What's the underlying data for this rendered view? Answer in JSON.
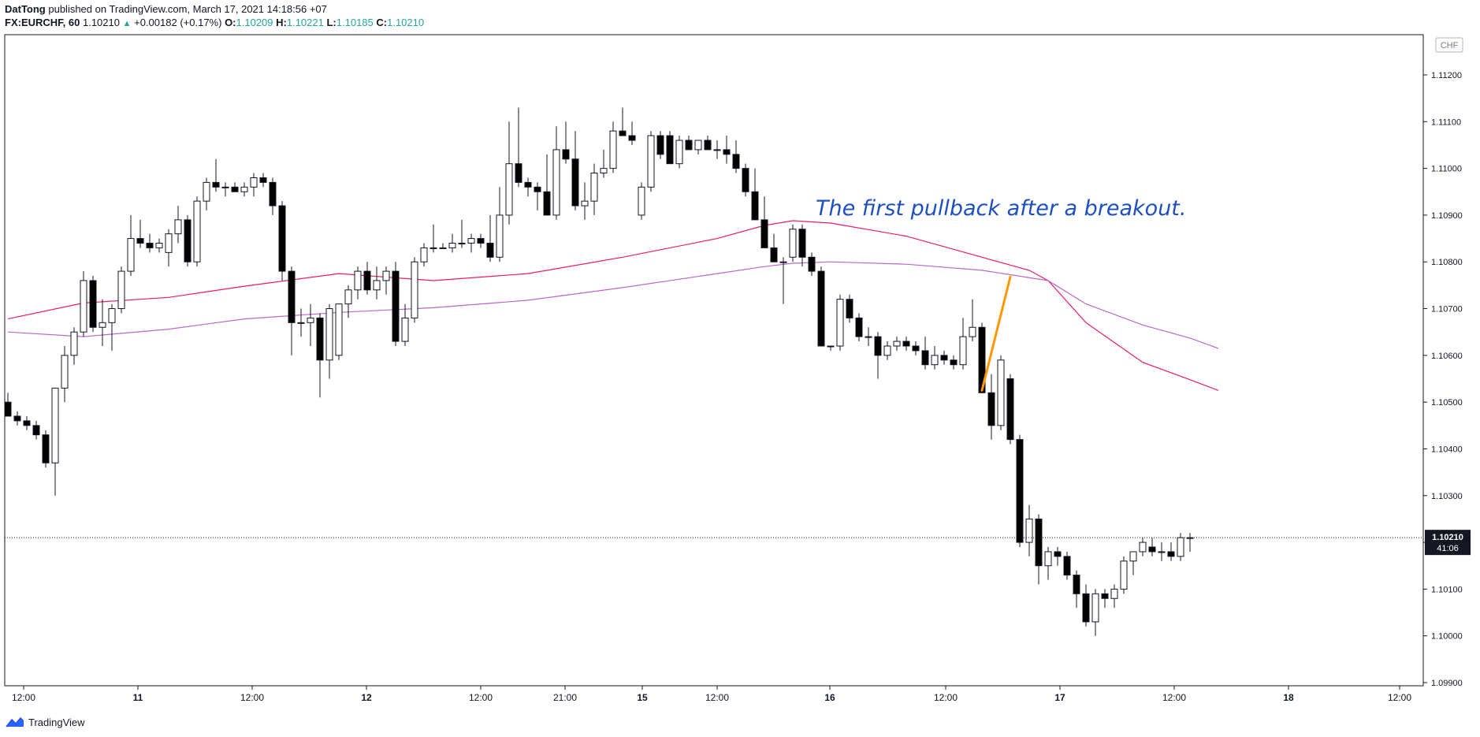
{
  "header": {
    "author": "DatTong",
    "published_text": " published on TradingView.com, March 17, 2021 14:18:56 +07",
    "symbol": "FX:EURCHF, 60",
    "last": "1.10210",
    "change": "+0.00182 (+0.17%)",
    "o_label": "O:",
    "o_value": "1.10209",
    "h_label": "H:",
    "h_value": "1.10221",
    "l_label": "L:",
    "l_value": "1.10185",
    "c_label": "C:",
    "c_value": "1.10210"
  },
  "footer": {
    "brand": "TradingView",
    "logo_icon": "tradingview-logo-icon"
  },
  "chart_data": {
    "type": "candlestick",
    "currency_label": "CHF",
    "annotation": "The first pullback after a breakout.",
    "last_price_label": "1.10210",
    "countdown_label": "41:06",
    "y_ticks": [
      "1.11200",
      "1.11100",
      "1.11000",
      "1.10900",
      "1.10800",
      "1.10700",
      "1.10600",
      "1.10500",
      "1.10400",
      "1.10300",
      "1.10200",
      "1.10100",
      "1.10000",
      "1.09900"
    ],
    "x_ticks": [
      "12:00",
      "11",
      "12:00",
      "12",
      "12:00",
      "21:00",
      "15",
      "12:00",
      "16",
      "12:00",
      "17",
      "12:00",
      "18",
      "12:00"
    ],
    "x_ticks_bold": [
      false,
      true,
      false,
      true,
      false,
      false,
      true,
      false,
      true,
      false,
      true,
      false,
      true,
      false
    ],
    "ylim": [
      1.0989,
      1.1134
    ],
    "candles": [
      [
        1.105,
        1.1052,
        1.1047,
        1.1047
      ],
      [
        1.1047,
        1.1048,
        1.1045,
        1.1046
      ],
      [
        1.1046,
        1.1047,
        1.1044,
        1.1045
      ],
      [
        1.1045,
        1.1046,
        1.1042,
        1.1043
      ],
      [
        1.1043,
        1.1044,
        1.1036,
        1.1037
      ],
      [
        1.1037,
        1.1053,
        1.103,
        1.1053
      ],
      [
        1.1053,
        1.1062,
        1.105,
        1.106
      ],
      [
        1.106,
        1.1066,
        1.1058,
        1.1065
      ],
      [
        1.1065,
        1.1078,
        1.1064,
        1.1076
      ],
      [
        1.1076,
        1.1077,
        1.1065,
        1.1066
      ],
      [
        1.1066,
        1.1072,
        1.1062,
        1.1067
      ],
      [
        1.1067,
        1.1071,
        1.1061,
        1.107
      ],
      [
        1.107,
        1.1079,
        1.1069,
        1.1078
      ],
      [
        1.1078,
        1.109,
        1.1077,
        1.1085
      ],
      [
        1.1085,
        1.1089,
        1.1083,
        1.1084
      ],
      [
        1.1084,
        1.1086,
        1.1082,
        1.1083
      ],
      [
        1.1083,
        1.1085,
        1.1082,
        1.1084
      ],
      [
        1.1082,
        1.1087,
        1.1079,
        1.1086
      ],
      [
        1.1086,
        1.1092,
        1.1084,
        1.1089
      ],
      [
        1.1089,
        1.109,
        1.1079,
        1.108
      ],
      [
        1.108,
        1.1094,
        1.1079,
        1.1093
      ],
      [
        1.1093,
        1.1098,
        1.1091,
        1.1097
      ],
      [
        1.1097,
        1.1102,
        1.1095,
        1.1096
      ],
      [
        1.1096,
        1.1097,
        1.1094,
        1.1096
      ],
      [
        1.1096,
        1.1097,
        1.1095,
        1.1095
      ],
      [
        1.1095,
        1.1097,
        1.1094,
        1.1096
      ],
      [
        1.1096,
        1.1099,
        1.1094,
        1.1098
      ],
      [
        1.1098,
        1.1099,
        1.1096,
        1.1097
      ],
      [
        1.1097,
        1.1098,
        1.109,
        1.1092
      ],
      [
        1.1092,
        1.1093,
        1.1076,
        1.1078
      ],
      [
        1.1078,
        1.1079,
        1.106,
        1.1067
      ],
      [
        1.1067,
        1.107,
        1.1064,
        1.1067
      ],
      [
        1.1067,
        1.1071,
        1.1062,
        1.1068
      ],
      [
        1.1068,
        1.1069,
        1.1051,
        1.1059
      ],
      [
        1.1059,
        1.1071,
        1.1055,
        1.107
      ],
      [
        1.106,
        1.1071,
        1.1059,
        1.1071
      ],
      [
        1.1071,
        1.1075,
        1.1068,
        1.1074
      ],
      [
        1.1074,
        1.1079,
        1.1072,
        1.1078
      ],
      [
        1.1078,
        1.108,
        1.1073,
        1.1074
      ],
      [
        1.1074,
        1.1079,
        1.1072,
        1.1076
      ],
      [
        1.1076,
        1.1079,
        1.1073,
        1.1078
      ],
      [
        1.1078,
        1.108,
        1.1062,
        1.1063
      ],
      [
        1.1063,
        1.1071,
        1.1062,
        1.1068
      ],
      [
        1.1068,
        1.1081,
        1.1067,
        1.108
      ],
      [
        1.108,
        1.1084,
        1.1079,
        1.1083
      ],
      [
        1.1083,
        1.1088,
        1.1082,
        1.1083
      ],
      [
        1.1083,
        1.1084,
        1.1083,
        1.1083
      ],
      [
        1.1083,
        1.1086,
        1.1082,
        1.1084
      ],
      [
        1.1084,
        1.1089,
        1.1083,
        1.1084
      ],
      [
        1.1084,
        1.1086,
        1.1082,
        1.1085
      ],
      [
        1.1085,
        1.1086,
        1.1083,
        1.1084
      ],
      [
        1.1084,
        1.109,
        1.108,
        1.1081
      ],
      [
        1.1081,
        1.1096,
        1.108,
        1.109
      ],
      [
        1.109,
        1.111,
        1.1088,
        1.1101
      ],
      [
        1.1101,
        1.1113,
        1.1096,
        1.1097
      ],
      [
        1.1097,
        1.1098,
        1.1094,
        1.1096
      ],
      [
        1.1096,
        1.1097,
        1.1091,
        1.1095
      ],
      [
        1.1095,
        1.1103,
        1.1091,
        1.109
      ],
      [
        1.109,
        1.1109,
        1.1089,
        1.1104
      ],
      [
        1.1104,
        1.111,
        1.1101,
        1.1102
      ],
      [
        1.1102,
        1.1108,
        1.1091,
        1.1092
      ],
      [
        1.1092,
        1.1097,
        1.1089,
        1.1093
      ],
      [
        1.1093,
        1.1101,
        1.109,
        1.1099
      ],
      [
        1.1099,
        1.1104,
        1.1098,
        1.11
      ],
      [
        1.11,
        1.111,
        1.1099,
        1.1108
      ],
      [
        1.1108,
        1.1113,
        1.1107,
        1.1107
      ],
      [
        1.1107,
        1.111,
        1.1105,
        1.1106
      ],
      [
        1.109,
        1.1097,
        1.1089,
        1.1096
      ],
      [
        1.1096,
        1.1108,
        1.1095,
        1.1107
      ],
      [
        1.1107,
        1.1108,
        1.1102,
        1.1103
      ],
      [
        1.1107,
        1.1108,
        1.1101,
        1.1101
      ],
      [
        1.1101,
        1.1107,
        1.11,
        1.1106
      ],
      [
        1.1106,
        1.1107,
        1.1104,
        1.1104
      ],
      [
        1.1104,
        1.1106,
        1.1103,
        1.1106
      ],
      [
        1.1106,
        1.1107,
        1.1104,
        1.1104
      ],
      [
        1.1104,
        1.1106,
        1.1102,
        1.1104
      ],
      [
        1.1104,
        1.1107,
        1.1101,
        1.1103
      ],
      [
        1.1103,
        1.1106,
        1.1099,
        1.11
      ],
      [
        1.11,
        1.1101,
        1.1094,
        1.1095
      ],
      [
        1.1095,
        1.11,
        1.109,
        1.1089
      ],
      [
        1.1089,
        1.1094,
        1.1084,
        1.1083
      ],
      [
        1.1083,
        1.1086,
        1.108,
        1.108
      ],
      [
        1.108,
        1.1081,
        1.1071,
        1.108
      ],
      [
        1.1081,
        1.1088,
        1.108,
        1.1087
      ],
      [
        1.1087,
        1.1088,
        1.1079,
        1.1081
      ],
      [
        1.1081,
        1.1082,
        1.1077,
        1.1078
      ],
      [
        1.1078,
        1.1079,
        1.1062,
        1.1062
      ],
      [
        1.1062,
        1.1062,
        1.1061,
        1.1062
      ],
      [
        1.1062,
        1.1073,
        1.1061,
        1.1072
      ],
      [
        1.1072,
        1.1073,
        1.1067,
        1.1068
      ],
      [
        1.1068,
        1.1069,
        1.1063,
        1.1064
      ],
      [
        1.1064,
        1.1066,
        1.1062,
        1.1064
      ],
      [
        1.1064,
        1.1065,
        1.1055,
        1.106
      ],
      [
        1.106,
        1.1063,
        1.1059,
        1.1062
      ],
      [
        1.1062,
        1.1064,
        1.1061,
        1.1063
      ],
      [
        1.1063,
        1.1064,
        1.1061,
        1.1062
      ],
      [
        1.1062,
        1.1063,
        1.106,
        1.1061
      ],
      [
        1.1061,
        1.1064,
        1.1057,
        1.1058
      ],
      [
        1.1058,
        1.1062,
        1.1057,
        1.106
      ],
      [
        1.106,
        1.1061,
        1.1058,
        1.1059
      ],
      [
        1.1059,
        1.106,
        1.1057,
        1.1058
      ],
      [
        1.1058,
        1.1068,
        1.1057,
        1.1064
      ],
      [
        1.1064,
        1.1072,
        1.1063,
        1.1066
      ],
      [
        1.1066,
        1.1067,
        1.1052,
        1.1052
      ],
      [
        1.1052,
        1.1056,
        1.1042,
        1.1045
      ],
      [
        1.1045,
        1.106,
        1.1044,
        1.1059
      ],
      [
        1.1055,
        1.1056,
        1.1041,
        1.1042
      ],
      [
        1.1042,
        1.1043,
        1.1019,
        1.102
      ],
      [
        1.102,
        1.1028,
        1.1017,
        1.1025
      ],
      [
        1.1025,
        1.1026,
        1.1011,
        1.1015
      ],
      [
        1.1015,
        1.1019,
        1.1012,
        1.1018
      ],
      [
        1.1018,
        1.1019,
        1.1015,
        1.1017
      ],
      [
        1.1017,
        1.1018,
        1.1012,
        1.1013
      ],
      [
        1.1013,
        1.1014,
        1.1006,
        1.1009
      ],
      [
        1.1009,
        1.1011,
        1.1002,
        1.1003
      ],
      [
        1.1003,
        1.101,
        1.1,
        1.1009
      ],
      [
        1.1009,
        1.101,
        1.1006,
        1.1008
      ],
      [
        1.1008,
        1.1011,
        1.1006,
        1.101
      ],
      [
        1.101,
        1.1017,
        1.1009,
        1.1016
      ],
      [
        1.1016,
        1.1018,
        1.1013,
        1.1018
      ],
      [
        1.1018,
        1.1021,
        1.1017,
        1.102
      ],
      [
        1.1019,
        1.1021,
        1.1017,
        1.1018
      ],
      [
        1.1018,
        1.102,
        1.1016,
        1.1018
      ],
      [
        1.1018,
        1.102,
        1.1016,
        1.1017
      ],
      [
        1.1017,
        1.1022,
        1.1016,
        1.1021
      ],
      [
        1.1021,
        1.1022,
        1.1018,
        1.1021
      ]
    ],
    "series": [
      {
        "color": "#e91e63",
        "values": [
          [
            0,
            1.10678
          ],
          [
            8,
            1.10712
          ],
          [
            17,
            1.10724
          ],
          [
            25,
            1.10748
          ],
          [
            35,
            1.10775
          ],
          [
            45,
            1.1076
          ],
          [
            55,
            1.10775
          ],
          [
            65,
            1.1081
          ],
          [
            75,
            1.1085
          ],
          [
            80,
            1.10878
          ],
          [
            83,
            1.10888
          ],
          [
            87,
            1.10883
          ],
          [
            95,
            1.10855
          ],
          [
            103,
            1.1081
          ],
          [
            108,
            1.10782
          ],
          [
            110,
            1.1076
          ],
          [
            114,
            1.1067
          ],
          [
            120,
            1.10585
          ],
          [
            125,
            1.10548
          ],
          [
            128,
            1.10525
          ]
        ]
      },
      {
        "color": "#ba68c8",
        "values": [
          [
            0,
            1.1065
          ],
          [
            8,
            1.1064
          ],
          [
            17,
            1.10656
          ],
          [
            25,
            1.10678
          ],
          [
            35,
            1.10692
          ],
          [
            45,
            1.10702
          ],
          [
            55,
            1.10718
          ],
          [
            65,
            1.10745
          ],
          [
            75,
            1.10775
          ],
          [
            80,
            1.1079
          ],
          [
            83,
            1.10797
          ],
          [
            87,
            1.108
          ],
          [
            95,
            1.10795
          ],
          [
            103,
            1.10782
          ],
          [
            110,
            1.1076
          ],
          [
            114,
            1.1071
          ],
          [
            120,
            1.10665
          ],
          [
            125,
            1.10637
          ],
          [
            128,
            1.10615
          ]
        ]
      }
    ],
    "pullback_line": {
      "color": "#ff9800",
      "from": [
        103,
        1.10525
      ],
      "to": [
        106,
        1.10768
      ]
    }
  }
}
